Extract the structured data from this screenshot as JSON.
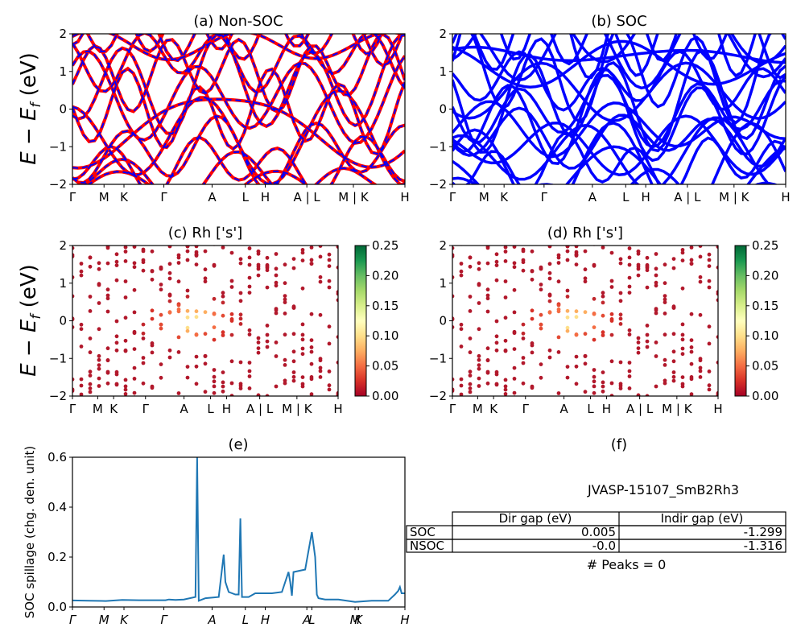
{
  "chart_data": [
    {
      "panel": "a",
      "type": "line",
      "title": "(a) Non-SOC",
      "ylabel": "E − E_f (eV)",
      "ylim": [
        -2,
        2
      ],
      "yticks": [
        "2",
        "1",
        "0",
        "−1",
        "−2"
      ],
      "xticks": [
        "Γ",
        "M",
        "K",
        "Γ",
        "A",
        "L",
        "H",
        "A | L",
        "M | K",
        "H"
      ],
      "series": [
        {
          "color": "#ff0000",
          "style": "solid"
        },
        {
          "color": "#0000ff",
          "style": "dashed"
        }
      ]
    },
    {
      "panel": "b",
      "type": "line",
      "title": "(b) SOC",
      "ylim": [
        -2,
        2
      ],
      "yticks": [
        "2",
        "1",
        "0",
        "−1",
        "−2"
      ],
      "xticks": [
        "Γ",
        "M",
        "K",
        "Γ",
        "A",
        "L",
        "H",
        "A | L",
        "M | K",
        "H"
      ],
      "series": [
        {
          "color": "#0000ff",
          "style": "solid"
        }
      ]
    },
    {
      "panel": "c",
      "type": "scatter",
      "title": "(c)  Rh ['s']",
      "ylabel": "E − E_f (eV)",
      "ylim": [
        -2,
        2
      ],
      "yticks": [
        "2",
        "1",
        "0",
        "−1",
        "−2"
      ],
      "xticks": [
        "Γ",
        "M",
        "K",
        "Γ",
        "A",
        "L",
        "H",
        "A | L",
        "M | K",
        "H"
      ],
      "colorbar": {
        "range": [
          0,
          0.25
        ],
        "ticks": [
          "0.25",
          "0.20",
          "0.15",
          "0.10",
          "0.05",
          "0.00"
        ]
      }
    },
    {
      "panel": "d",
      "type": "scatter",
      "title": "(d) Rh ['s']",
      "ylim": [
        -2,
        2
      ],
      "yticks": [
        "2",
        "1",
        "0",
        "−1",
        "−2"
      ],
      "xticks": [
        "Γ",
        "M",
        "K",
        "Γ",
        "A",
        "L",
        "H",
        "A | L",
        "M | K",
        "H"
      ],
      "colorbar": {
        "range": [
          0,
          0.25
        ],
        "ticks": [
          "0.25",
          "0.20",
          "0.15",
          "0.10",
          "0.05",
          "0.00"
        ]
      }
    },
    {
      "panel": "e",
      "type": "line",
      "title": "(e)",
      "ylabel": "SOC spillage (chg. den. unit)",
      "ylim": [
        0,
        0.6
      ],
      "yticks": [
        "0.6",
        "0.4",
        "0.2",
        "0.0"
      ],
      "xticks": [
        "Γ",
        "M",
        "K",
        "Γ",
        "A",
        "L",
        "H",
        "A",
        "L",
        "M",
        "K",
        "H"
      ],
      "x": [
        0,
        0.05,
        0.1,
        0.15,
        0.2,
        0.25,
        0.28,
        0.29,
        0.31,
        0.335,
        0.37,
        0.375,
        0.38,
        0.39,
        0.4,
        0.44,
        0.455,
        0.46,
        0.47,
        0.49,
        0.5,
        0.505,
        0.51,
        0.53,
        0.55,
        0.57,
        0.6,
        0.63,
        0.65,
        0.655,
        0.66,
        0.665,
        0.7,
        0.72,
        0.73,
        0.735,
        0.74,
        0.76,
        0.8,
        0.85,
        0.9,
        0.95,
        0.97,
        0.98,
        0.985,
        0.99,
        1.0
      ],
      "values": [
        0.026,
        0.025,
        0.024,
        0.028,
        0.027,
        0.027,
        0.027,
        0.03,
        0.028,
        0.03,
        0.04,
        0.6,
        0.025,
        0.03,
        0.035,
        0.04,
        0.21,
        0.1,
        0.06,
        0.05,
        0.05,
        0.355,
        0.04,
        0.04,
        0.055,
        0.055,
        0.055,
        0.06,
        0.14,
        0.1,
        0.045,
        0.14,
        0.15,
        0.3,
        0.2,
        0.05,
        0.035,
        0.03,
        0.03,
        0.02,
        0.025,
        0.025,
        0.05,
        0.065,
        0.08,
        0.055,
        0.055
      ]
    },
    {
      "panel": "f",
      "type": "table",
      "title": "(f)",
      "subtitle": "JVASP-15107_SmB2Rh3",
      "columns": [
        "Dir gap (eV)",
        "Indir gap (eV)"
      ],
      "rows": [
        {
          "label": "SOC",
          "values": [
            "0.005",
            "-1.299"
          ]
        },
        {
          "label": "NSOC",
          "values": [
            "-0.0",
            "-1.316"
          ]
        }
      ],
      "footer": "# Peaks = 0"
    }
  ]
}
